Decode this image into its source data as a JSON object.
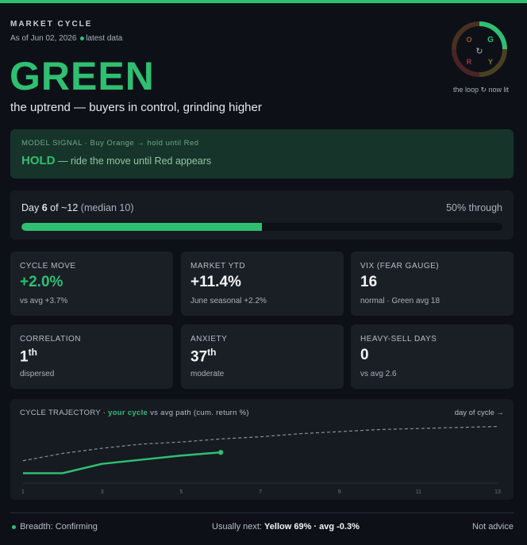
{
  "header": {
    "eyebrow": "MARKET CYCLE",
    "as_of": "As of Jun 02, 2026",
    "data_status": "latest data",
    "regime": "GREEN",
    "subtitle": "the uptrend — buyers in control, grinding higher"
  },
  "loop": {
    "letters": [
      "O",
      "G",
      "R",
      "Y"
    ],
    "center_glyph": "↻",
    "caption": "the loop ↻ now lit",
    "colors": {
      "O": "#a0592e",
      "G": "#2fbf71",
      "R": "#9a3b3b",
      "Y": "#8a7a3a"
    }
  },
  "signal": {
    "heading": "MODEL SIGNAL · Buy Orange → hold until Red",
    "action": "HOLD",
    "detail": "— ride the move until Red appears"
  },
  "progress": {
    "day_label": "Day",
    "day": "6",
    "of_label": "of",
    "total": "~12",
    "median": "(median 10)",
    "through": "50% through",
    "fraction": 0.5
  },
  "cards": [
    {
      "label": "CYCLE MOVE",
      "value": "+2.0%",
      "sup": "",
      "sub": "vs avg +3.7%"
    },
    {
      "label": "MARKET YTD",
      "value": "+11.4%",
      "sup": "",
      "sub": "June seasonal +2.2%"
    },
    {
      "label": "VIX (FEAR GAUGE)",
      "value": "16",
      "sup": "",
      "sub": "normal · Green avg 18"
    },
    {
      "label": "CORRELATION",
      "value": "1",
      "sup": "th",
      "sub": "dispersed"
    },
    {
      "label": "ANXIETY",
      "value": "37",
      "sup": "th",
      "sub": "moderate"
    },
    {
      "label": "HEAVY-SELL DAYS",
      "value": "0",
      "sup": "",
      "sub": "vs avg 2.6"
    }
  ],
  "chart_data": {
    "type": "line",
    "title_prefix": "CYCLE TRAJECTORY ·",
    "title_series": "your cycle",
    "title_suffix": "vs avg path (cum. return %)",
    "xlabel": "day of cycle →",
    "x_ticks": [
      1,
      3,
      5,
      7,
      9,
      11,
      13
    ],
    "xlim": [
      1,
      13
    ],
    "ylim": [
      -0.5,
      5
    ],
    "series": [
      {
        "name": "your cycle",
        "x": [
          1,
          2,
          3,
          4,
          5,
          6
        ],
        "values": [
          0.0,
          0.0,
          0.9,
          1.3,
          1.7,
          2.0
        ],
        "color": "#2fbf71",
        "style": "solid"
      },
      {
        "name": "avg path",
        "x": [
          1,
          2,
          3,
          4,
          5,
          6,
          7,
          8,
          9,
          10,
          11,
          12,
          13
        ],
        "values": [
          1.2,
          1.9,
          2.4,
          2.8,
          3.0,
          3.3,
          3.5,
          3.8,
          4.0,
          4.2,
          4.3,
          4.4,
          4.5
        ],
        "color": "#8a9099",
        "style": "dashed"
      }
    ]
  },
  "footer": {
    "breadth": "Breadth: Confirming",
    "next_prefix": "Usually next:",
    "next_value": "Yellow 69% · avg -0.3%",
    "disclaimer": "Not advice"
  }
}
